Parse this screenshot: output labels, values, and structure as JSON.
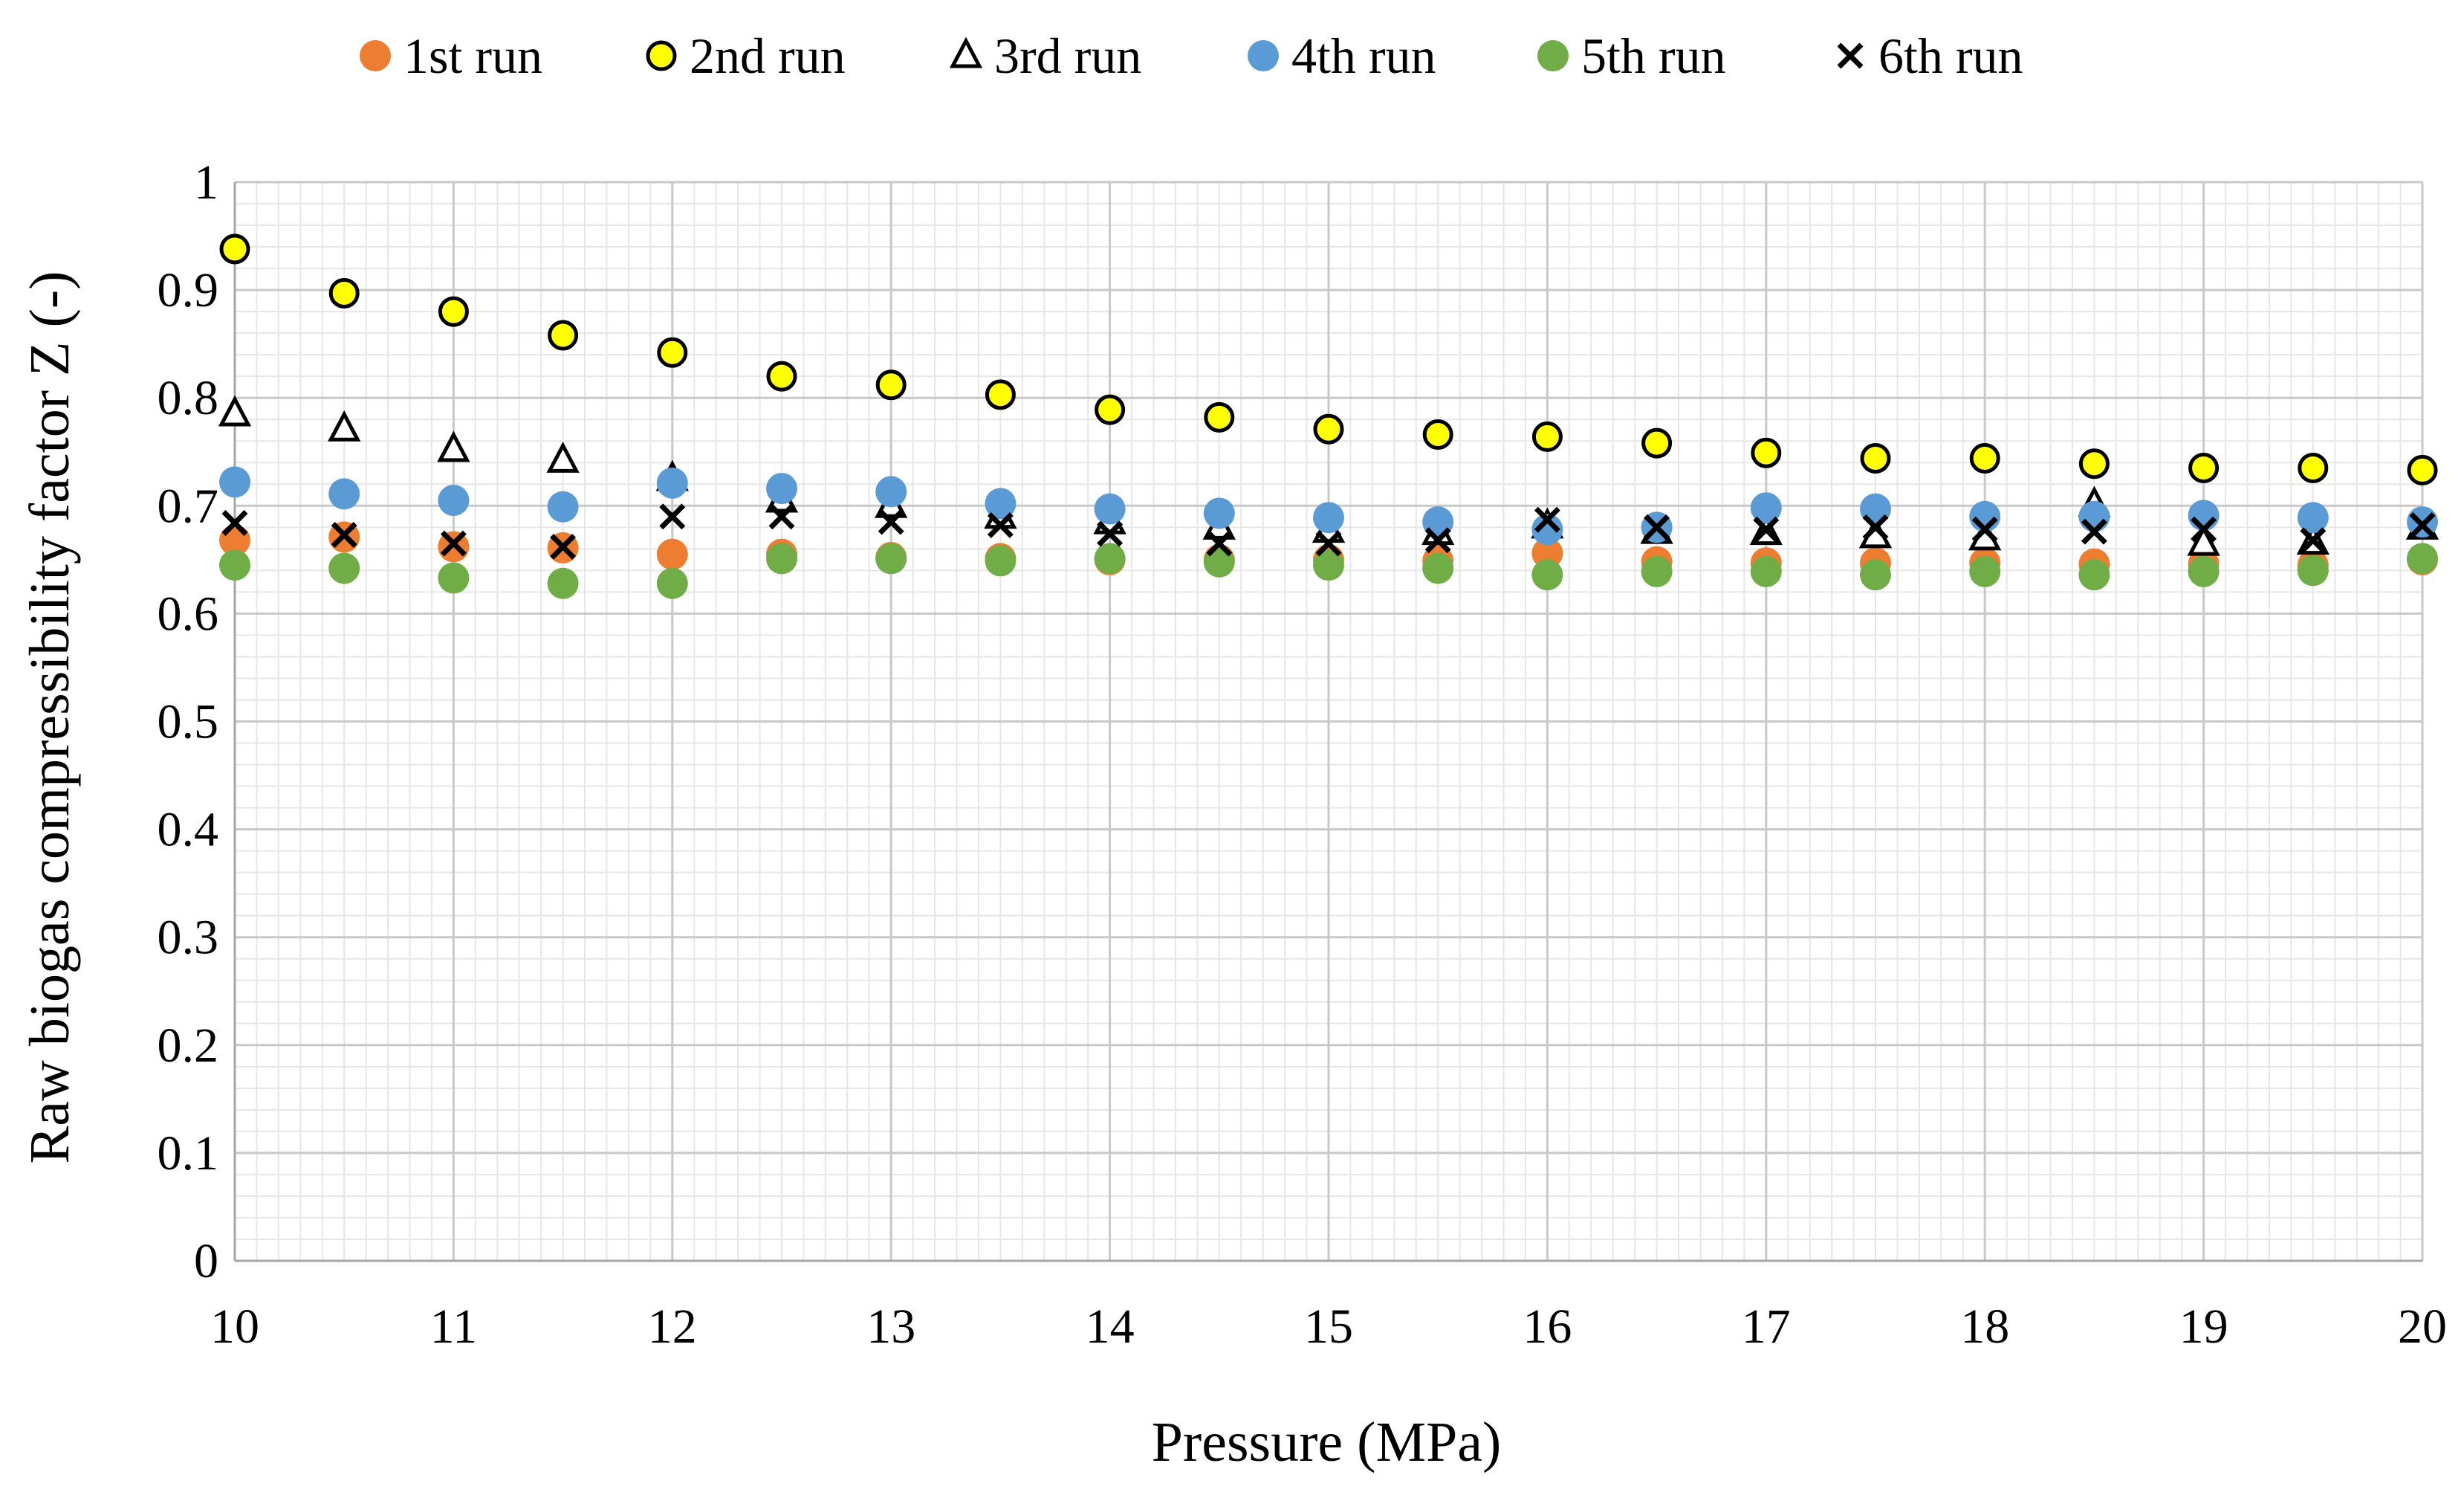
{
  "chart_data": {
    "type": "scatter",
    "xlabel": "Pressure (MPa)",
    "ylabel": "Raw biogas compressibility factor Z (-)",
    "xlim": [
      10,
      20
    ],
    "ylim": [
      0,
      1
    ],
    "x_ticks": [
      10,
      11,
      12,
      13,
      14,
      15,
      16,
      17,
      18,
      19,
      20
    ],
    "y_ticks": [
      "0",
      "0.1",
      "0.2",
      "0.3",
      "0.4",
      "0.5",
      "0.6",
      "0.7",
      "0.8",
      "0.9",
      "1"
    ],
    "grid": true,
    "legend_position": "top",
    "x": [
      10,
      10.5,
      11,
      11.5,
      12,
      12.5,
      13,
      13.5,
      14,
      14.5,
      15,
      15.5,
      16,
      16.5,
      17,
      17.5,
      18,
      18.5,
      19,
      19.5,
      20
    ],
    "series": [
      {
        "name": "1st run",
        "marker": "circle",
        "color": "#ED7D31",
        "values": [
          0.668,
          0.671,
          0.662,
          0.661,
          0.655,
          0.655,
          0.652,
          0.651,
          0.65,
          0.65,
          0.65,
          0.649,
          0.656,
          0.648,
          0.647,
          0.647,
          0.647,
          0.646,
          0.646,
          0.645,
          0.65
        ]
      },
      {
        "name": "2nd run",
        "marker": "circle-open",
        "color": "#FFFF00",
        "values": [
          0.938,
          0.897,
          0.88,
          0.858,
          0.842,
          0.82,
          0.812,
          0.803,
          0.789,
          0.782,
          0.771,
          0.766,
          0.764,
          0.758,
          0.749,
          0.744,
          0.744,
          0.739,
          0.735,
          0.735,
          0.733
        ]
      },
      {
        "name": "3rd run",
        "marker": "triangle",
        "color": "#000000",
        "values": [
          0.785,
          0.771,
          0.752,
          0.742,
          0.725,
          0.705,
          0.7,
          0.69,
          0.685,
          0.68,
          0.677,
          0.675,
          0.681,
          0.676,
          0.675,
          0.672,
          0.67,
          0.701,
          0.665,
          0.666,
          0.68
        ]
      },
      {
        "name": "4th run",
        "marker": "circle",
        "color": "#5B9BD5",
        "values": [
          0.722,
          0.711,
          0.705,
          0.699,
          0.721,
          0.716,
          0.713,
          0.702,
          0.697,
          0.693,
          0.689,
          0.685,
          0.678,
          0.68,
          0.698,
          0.697,
          0.69,
          0.69,
          0.691,
          0.689,
          0.685
        ]
      },
      {
        "name": "5th run",
        "marker": "circle",
        "color": "#70AD47",
        "values": [
          0.645,
          0.642,
          0.633,
          0.628,
          0.628,
          0.651,
          0.651,
          0.649,
          0.651,
          0.648,
          0.645,
          0.642,
          0.636,
          0.639,
          0.639,
          0.636,
          0.639,
          0.636,
          0.639,
          0.64,
          0.651
        ]
      },
      {
        "name": "6th run",
        "marker": "x",
        "color": "#000000",
        "values": [
          0.684,
          0.673,
          0.665,
          0.662,
          0.69,
          0.69,
          0.685,
          0.682,
          0.674,
          0.665,
          0.665,
          0.668,
          0.687,
          0.68,
          0.678,
          0.68,
          0.678,
          0.676,
          0.678,
          0.668,
          0.682
        ]
      }
    ]
  }
}
